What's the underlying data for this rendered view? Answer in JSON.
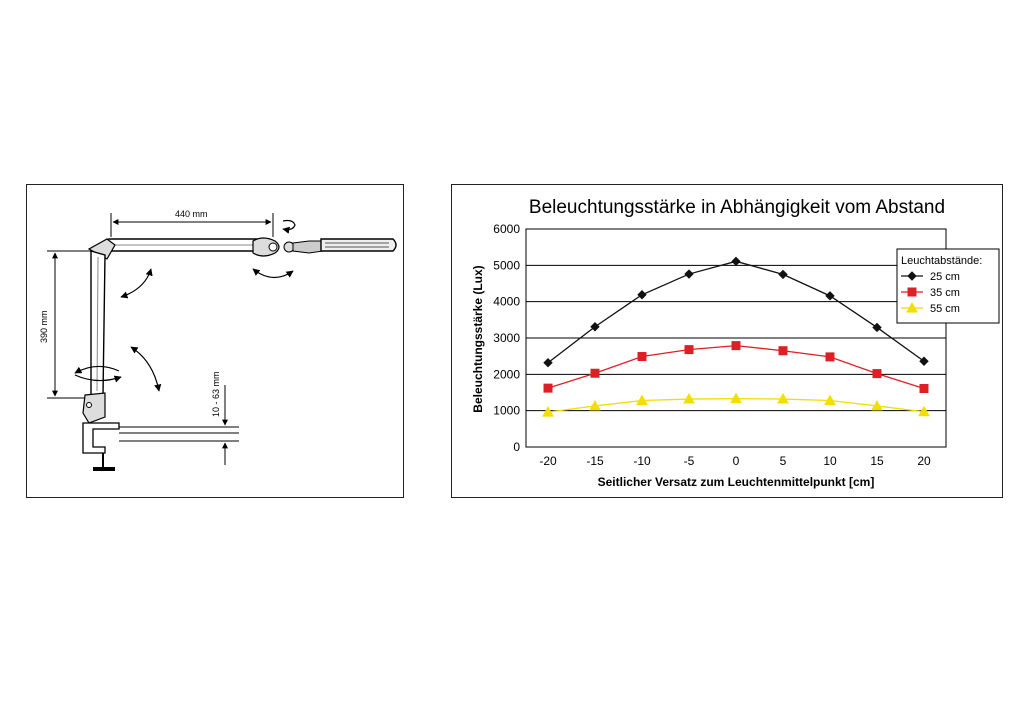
{
  "lamp_drawing": {
    "dim_arm_length": "440 mm",
    "dim_height": "390 mm",
    "dim_clamp_range": "10 - 63 mm"
  },
  "chart_data": {
    "type": "line",
    "title": "Beleuchtungsstärke in Abhängigkeit vom Abstand",
    "xlabel": "Seitlicher Versatz zum Leuchtenmittelpunkt [cm]",
    "ylabel": "Beleuchtungsstärke (Lux)",
    "x": [
      -20,
      -15,
      -10,
      -5,
      0,
      5,
      10,
      15,
      20
    ],
    "xticks": [
      "-20",
      "-15",
      "-10",
      "-5",
      "0",
      "5",
      "10",
      "15",
      "20"
    ],
    "yticks": [
      "0",
      "1000",
      "2000",
      "3000",
      "4000",
      "5000",
      "6000"
    ],
    "xlim": [
      -20,
      20
    ],
    "ylim": [
      0,
      6000
    ],
    "grid": "horizontal",
    "legend": {
      "title": "Leuchtabstände:",
      "position": "top-right"
    },
    "series": [
      {
        "name": "25 cm",
        "color": "#111111",
        "marker": "diamond",
        "values": [
          2320,
          3310,
          4190,
          4760,
          5110,
          4750,
          4160,
          3290,
          2360
        ]
      },
      {
        "name": "35 cm",
        "color": "#dd1f26",
        "marker": "square",
        "values": [
          1620,
          2030,
          2490,
          2680,
          2790,
          2650,
          2480,
          2020,
          1610
        ]
      },
      {
        "name": "55 cm",
        "color": "#f2de00",
        "marker": "triangle",
        "values": [
          960,
          1130,
          1280,
          1320,
          1330,
          1320,
          1280,
          1130,
          970
        ]
      }
    ]
  }
}
